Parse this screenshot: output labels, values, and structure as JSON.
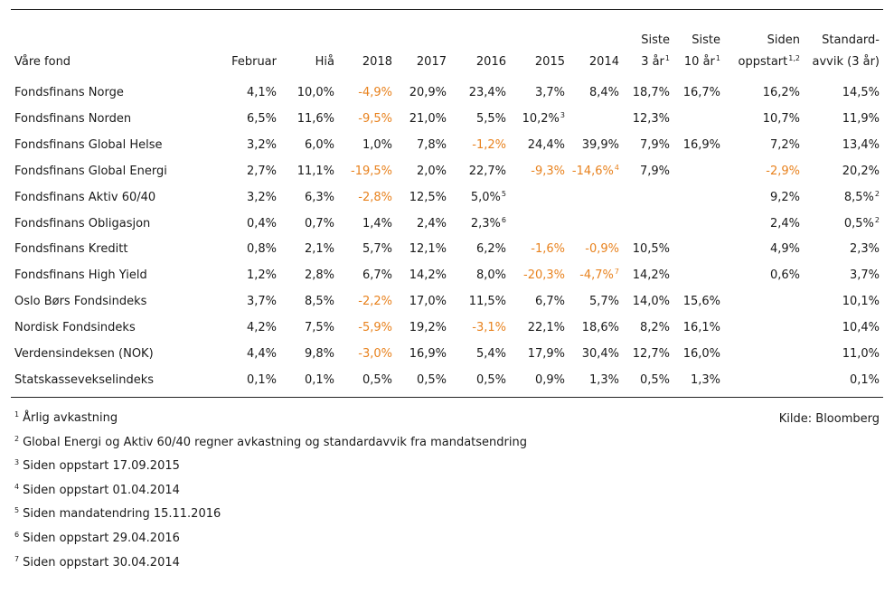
{
  "table": {
    "columns": [
      {
        "line1": "",
        "line2": "Våre fond",
        "sup": ""
      },
      {
        "line1": "",
        "line2": "Februar",
        "sup": ""
      },
      {
        "line1": "",
        "line2": "Hiå",
        "sup": ""
      },
      {
        "line1": "",
        "line2": "2018",
        "sup": ""
      },
      {
        "line1": "",
        "line2": "2017",
        "sup": ""
      },
      {
        "line1": "",
        "line2": "2016",
        "sup": ""
      },
      {
        "line1": "",
        "line2": "2015",
        "sup": ""
      },
      {
        "line1": "",
        "line2": "2014",
        "sup": ""
      },
      {
        "line1": "Siste",
        "line2": "3 år",
        "sup": "1"
      },
      {
        "line1": "Siste",
        "line2": "10 år",
        "sup": "1"
      },
      {
        "line1": "Siden",
        "line2": "oppstart",
        "sup": "1,2"
      },
      {
        "line1": "Standard-",
        "line2": "avvik (3 år)",
        "sup": ""
      }
    ],
    "rows": [
      {
        "name": "Fondsfinans Norge",
        "cells": [
          {
            "v": "4,1%"
          },
          {
            "v": "10,0%"
          },
          {
            "v": "-4,9%",
            "neg": true
          },
          {
            "v": "20,9%"
          },
          {
            "v": "23,4%"
          },
          {
            "v": "3,7%"
          },
          {
            "v": "8,4%"
          },
          {
            "v": "18,7%"
          },
          {
            "v": "16,7%"
          },
          {
            "v": "16,2%"
          },
          {
            "v": "14,5%"
          }
        ]
      },
      {
        "name": "Fondsfinans Norden",
        "cells": [
          {
            "v": "6,5%"
          },
          {
            "v": "11,6%"
          },
          {
            "v": "-9,5%",
            "neg": true
          },
          {
            "v": "21,0%"
          },
          {
            "v": "5,5%"
          },
          {
            "v": "10,2%",
            "sup": "3"
          },
          {
            "v": ""
          },
          {
            "v": "12,3%"
          },
          {
            "v": ""
          },
          {
            "v": "10,7%"
          },
          {
            "v": "11,9%"
          }
        ]
      },
      {
        "name": "Fondsfinans Global Helse",
        "cells": [
          {
            "v": "3,2%"
          },
          {
            "v": "6,0%"
          },
          {
            "v": "1,0%"
          },
          {
            "v": "7,8%"
          },
          {
            "v": "-1,2%",
            "neg": true
          },
          {
            "v": "24,4%"
          },
          {
            "v": "39,9%"
          },
          {
            "v": "7,9%"
          },
          {
            "v": "16,9%"
          },
          {
            "v": "7,2%"
          },
          {
            "v": "13,4%"
          }
        ]
      },
      {
        "name": "Fondsfinans Global Energi",
        "cells": [
          {
            "v": "2,7%"
          },
          {
            "v": "11,1%"
          },
          {
            "v": "-19,5%",
            "neg": true
          },
          {
            "v": "2,0%"
          },
          {
            "v": "22,7%"
          },
          {
            "v": "-9,3%",
            "neg": true
          },
          {
            "v": "-14,6%",
            "neg": true,
            "sup": "4"
          },
          {
            "v": "7,9%"
          },
          {
            "v": ""
          },
          {
            "v": "-2,9%",
            "neg": true
          },
          {
            "v": "20,2%"
          }
        ]
      },
      {
        "name": "Fondsfinans Aktiv 60/40",
        "cells": [
          {
            "v": "3,2%"
          },
          {
            "v": "6,3%"
          },
          {
            "v": "-2,8%",
            "neg": true
          },
          {
            "v": "12,5%"
          },
          {
            "v": "5,0%",
            "sup": "5"
          },
          {
            "v": ""
          },
          {
            "v": ""
          },
          {
            "v": ""
          },
          {
            "v": ""
          },
          {
            "v": "9,2%"
          },
          {
            "v": "8,5%",
            "sup": "2"
          }
        ]
      },
      {
        "name": "Fondsfinans Obligasjon",
        "cells": [
          {
            "v": "0,4%"
          },
          {
            "v": "0,7%"
          },
          {
            "v": "1,4%"
          },
          {
            "v": "2,4%"
          },
          {
            "v": "2,3%",
            "sup": "6"
          },
          {
            "v": ""
          },
          {
            "v": ""
          },
          {
            "v": ""
          },
          {
            "v": ""
          },
          {
            "v": "2,4%"
          },
          {
            "v": "0,5%",
            "sup": "2"
          }
        ]
      },
      {
        "name": "Fondsfinans Kreditt",
        "cells": [
          {
            "v": "0,8%"
          },
          {
            "v": "2,1%"
          },
          {
            "v": "5,7%"
          },
          {
            "v": "12,1%"
          },
          {
            "v": "6,2%"
          },
          {
            "v": "-1,6%",
            "neg": true
          },
          {
            "v": "-0,9%",
            "neg": true
          },
          {
            "v": "10,5%"
          },
          {
            "v": ""
          },
          {
            "v": "4,9%"
          },
          {
            "v": "2,3%"
          }
        ]
      },
      {
        "name": "Fondsfinans High Yield",
        "cells": [
          {
            "v": "1,2%"
          },
          {
            "v": "2,8%"
          },
          {
            "v": "6,7%"
          },
          {
            "v": "14,2%"
          },
          {
            "v": "8,0%"
          },
          {
            "v": "-20,3%",
            "neg": true
          },
          {
            "v": "-4,7%",
            "neg": true,
            "sup": "7"
          },
          {
            "v": "14,2%"
          },
          {
            "v": ""
          },
          {
            "v": "0,6%"
          },
          {
            "v": "3,7%"
          }
        ]
      },
      {
        "name": "Oslo Børs Fondsindeks",
        "cells": [
          {
            "v": "3,7%"
          },
          {
            "v": "8,5%"
          },
          {
            "v": "-2,2%",
            "neg": true
          },
          {
            "v": "17,0%"
          },
          {
            "v": "11,5%"
          },
          {
            "v": "6,7%"
          },
          {
            "v": "5,7%"
          },
          {
            "v": "14,0%"
          },
          {
            "v": "15,6%"
          },
          {
            "v": ""
          },
          {
            "v": "10,1%"
          }
        ]
      },
      {
        "name": "Nordisk Fondsindeks",
        "cells": [
          {
            "v": "4,2%"
          },
          {
            "v": "7,5%"
          },
          {
            "v": "-5,9%",
            "neg": true
          },
          {
            "v": "19,2%"
          },
          {
            "v": "-3,1%",
            "neg": true
          },
          {
            "v": "22,1%"
          },
          {
            "v": "18,6%"
          },
          {
            "v": "8,2%"
          },
          {
            "v": "16,1%"
          },
          {
            "v": ""
          },
          {
            "v": "10,4%"
          }
        ]
      },
      {
        "name": "Verdensindeksen (NOK)",
        "cells": [
          {
            "v": "4,4%"
          },
          {
            "v": "9,8%"
          },
          {
            "v": "-3,0%",
            "neg": true
          },
          {
            "v": "16,9%"
          },
          {
            "v": "5,4%"
          },
          {
            "v": "17,9%"
          },
          {
            "v": "30,4%"
          },
          {
            "v": "12,7%"
          },
          {
            "v": "16,0%"
          },
          {
            "v": ""
          },
          {
            "v": "11,0%"
          }
        ]
      },
      {
        "name": "Statskassevekselindeks",
        "cells": [
          {
            "v": "0,1%"
          },
          {
            "v": "0,1%"
          },
          {
            "v": "0,5%"
          },
          {
            "v": "0,5%"
          },
          {
            "v": "0,5%"
          },
          {
            "v": "0,9%"
          },
          {
            "v": "1,3%"
          },
          {
            "v": "0,5%"
          },
          {
            "v": "1,3%"
          },
          {
            "v": ""
          },
          {
            "v": "0,1%"
          }
        ]
      }
    ]
  },
  "footnotes": [
    {
      "num": "1",
      "text": "Årlig avkastning"
    },
    {
      "num": "2",
      "text": "Global Energi og Aktiv 60/40 regner avkastning og standardavvik fra mandatsendring"
    },
    {
      "num": "3",
      "text": "Siden oppstart 17.09.2015"
    },
    {
      "num": "4",
      "text": "Siden oppstart 01.04.2014"
    },
    {
      "num": "5",
      "text": "Siden mandatendring 15.11.2016"
    },
    {
      "num": "6",
      "text": "Siden oppstart 29.04.2016"
    },
    {
      "num": "7",
      "text": "Siden oppstart 30.04.2014"
    }
  ],
  "source": "Kilde: Bloomberg",
  "colors": {
    "negative": "#e8821e",
    "text": "#1a1a1a"
  }
}
